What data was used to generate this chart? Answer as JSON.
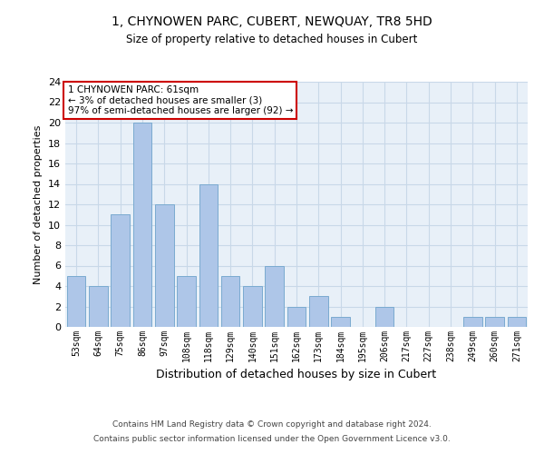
{
  "title": "1, CHYNOWEN PARC, CUBERT, NEWQUAY, TR8 5HD",
  "subtitle": "Size of property relative to detached houses in Cubert",
  "xlabel": "Distribution of detached houses by size in Cubert",
  "ylabel": "Number of detached properties",
  "categories": [
    "53sqm",
    "64sqm",
    "75sqm",
    "86sqm",
    "97sqm",
    "108sqm",
    "118sqm",
    "129sqm",
    "140sqm",
    "151sqm",
    "162sqm",
    "173sqm",
    "184sqm",
    "195sqm",
    "206sqm",
    "217sqm",
    "227sqm",
    "238sqm",
    "249sqm",
    "260sqm",
    "271sqm"
  ],
  "values": [
    5,
    4,
    11,
    20,
    12,
    5,
    14,
    5,
    4,
    6,
    2,
    3,
    1,
    0,
    2,
    0,
    0,
    0,
    1,
    1,
    1
  ],
  "bar_color": "#aec6e8",
  "bar_edgecolor": "#7aaad0",
  "annotation_box_text": "1 CHYNOWEN PARC: 61sqm\n← 3% of detached houses are smaller (3)\n97% of semi-detached houses are larger (92) →",
  "annotation_box_color": "#cc0000",
  "ylim": [
    0,
    24
  ],
  "yticks": [
    0,
    2,
    4,
    6,
    8,
    10,
    12,
    14,
    16,
    18,
    20,
    22,
    24
  ],
  "grid_color": "#c8d8e8",
  "background_color": "#e8f0f8",
  "footer_line1": "Contains HM Land Registry data © Crown copyright and database right 2024.",
  "footer_line2": "Contains public sector information licensed under the Open Government Licence v3.0."
}
